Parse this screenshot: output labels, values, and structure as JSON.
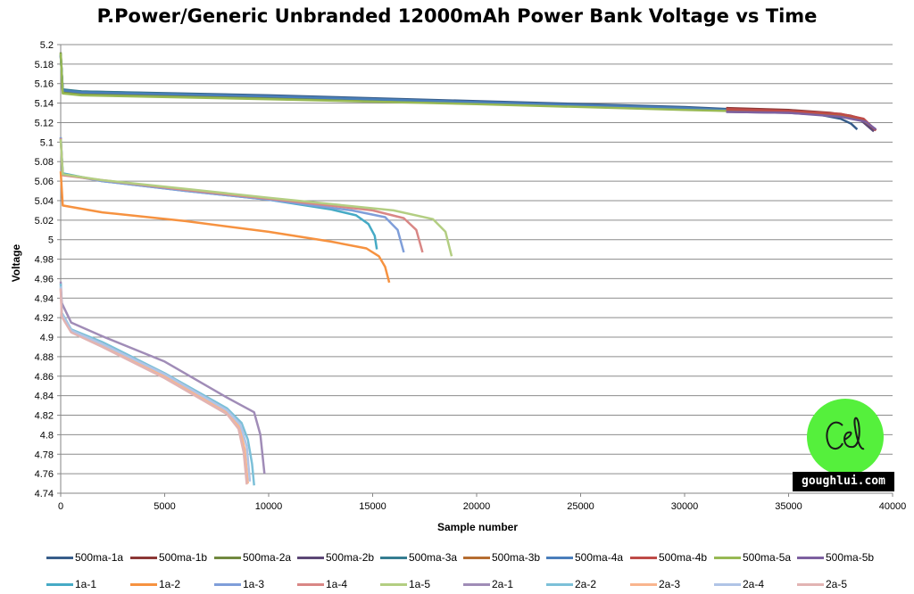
{
  "chart_data": {
    "type": "line",
    "title": "P.Power/Generic Unbranded 12000mAh Power Bank Voltage vs Time",
    "xlabel": "Sample number",
    "ylabel": "Voltage",
    "xlim": [
      0,
      40000
    ],
    "ylim": [
      4.74,
      5.2
    ],
    "x_ticks": [
      "0",
      "5000",
      "10000",
      "15000",
      "20000",
      "25000",
      "30000",
      "35000",
      "40000"
    ],
    "y_ticks": [
      "4.74",
      "4.76",
      "4.78",
      "4.8",
      "4.82",
      "4.84",
      "4.86",
      "4.88",
      "4.9",
      "4.92",
      "4.94",
      "4.96",
      "4.98",
      "5",
      "5.02",
      "5.04",
      "5.06",
      "5.08",
      "5.1",
      "5.12",
      "5.14",
      "5.16",
      "5.18",
      "5.2"
    ],
    "grid": true,
    "legend_position": "bottom",
    "series": [
      {
        "name": "500ma-1a",
        "color": "#385d8a",
        "x": [
          0,
          100,
          1000,
          10000,
          20000,
          30000,
          35000,
          36500,
          37500,
          38000,
          38300
        ],
        "y": [
          5.188,
          5.153,
          5.152,
          5.148,
          5.142,
          5.136,
          5.131,
          5.128,
          5.124,
          5.119,
          5.113
        ]
      },
      {
        "name": "500ma-1b",
        "color": "#8c3836",
        "x": [
          32000,
          35000,
          37000,
          38000,
          38500,
          38800,
          39200
        ],
        "y": [
          5.135,
          5.133,
          5.13,
          5.127,
          5.124,
          5.119,
          5.112
        ]
      },
      {
        "name": "500ma-2a",
        "color": "#71893f",
        "x": [
          0,
          100,
          1000,
          10000,
          20000,
          30000,
          32000
        ],
        "y": [
          5.192,
          5.151,
          5.149,
          5.145,
          5.14,
          5.134,
          5.133
        ]
      },
      {
        "name": "500ma-2b",
        "color": "#5c4776",
        "x": [
          32000,
          35000,
          37500,
          38500,
          39100
        ],
        "y": [
          5.131,
          5.13,
          5.127,
          5.122,
          5.111
        ]
      },
      {
        "name": "500ma-3a",
        "color": "#357d91",
        "x": [
          0,
          100,
          1000,
          10000,
          20000,
          30000,
          32000
        ],
        "y": [
          5.19,
          5.154,
          5.152,
          5.147,
          5.141,
          5.135,
          5.133
        ]
      },
      {
        "name": "500ma-3b",
        "color": "#b66d31",
        "x": [
          32000,
          35000,
          37500,
          38600,
          39000
        ],
        "y": [
          5.133,
          5.131,
          5.128,
          5.122,
          5.116
        ]
      },
      {
        "name": "500ma-4a",
        "color": "#4a7ebb",
        "x": [
          0,
          100,
          1000,
          10000,
          20000,
          30000,
          32000
        ],
        "y": [
          5.189,
          5.153,
          5.151,
          5.147,
          5.141,
          5.135,
          5.133
        ]
      },
      {
        "name": "500ma-4b",
        "color": "#be4b48",
        "x": [
          32000,
          35000,
          37500,
          38600,
          39200
        ],
        "y": [
          5.134,
          5.132,
          5.129,
          5.124,
          5.112
        ]
      },
      {
        "name": "500ma-5a",
        "color": "#98b954",
        "x": [
          0,
          100,
          1000,
          10000,
          20000,
          30000,
          32000
        ],
        "y": [
          5.191,
          5.15,
          5.148,
          5.144,
          5.139,
          5.133,
          5.132
        ]
      },
      {
        "name": "500ma-5b",
        "color": "#7d60a0",
        "x": [
          32000,
          35000,
          37500,
          38700,
          39200
        ],
        "y": [
          5.131,
          5.13,
          5.126,
          5.121,
          5.113
        ]
      },
      {
        "name": "1a-1",
        "color": "#46aac5",
        "x": [
          0,
          100,
          2000,
          6000,
          10000,
          13000,
          14200,
          14800,
          15100,
          15200
        ],
        "y": [
          5.105,
          5.068,
          5.06,
          5.05,
          5.041,
          5.031,
          5.025,
          5.016,
          5.004,
          4.99
        ]
      },
      {
        "name": "1a-2",
        "color": "#f69240",
        "x": [
          0,
          100,
          2000,
          6000,
          10000,
          13000,
          14700,
          15300,
          15600,
          15800
        ],
        "y": [
          5.07,
          5.035,
          5.028,
          5.019,
          5.008,
          4.998,
          4.991,
          4.983,
          4.972,
          4.956
        ]
      },
      {
        "name": "1a-3",
        "color": "#7f9ed9",
        "x": [
          0,
          100,
          2000,
          6000,
          10000,
          14000,
          15600,
          16200,
          16500
        ],
        "y": [
          5.105,
          5.067,
          5.06,
          5.05,
          5.041,
          5.03,
          5.023,
          5.01,
          4.987
        ]
      },
      {
        "name": "1a-4",
        "color": "#d98785",
        "x": [
          0,
          100,
          2000,
          6000,
          10000,
          15000,
          16500,
          17100,
          17400
        ],
        "y": [
          5.104,
          5.066,
          5.061,
          5.051,
          5.042,
          5.03,
          5.022,
          5.01,
          4.987
        ]
      },
      {
        "name": "1a-5",
        "color": "#b3ce82",
        "x": [
          0,
          100,
          2000,
          6000,
          10000,
          16000,
          17900,
          18500,
          18800
        ],
        "y": [
          5.103,
          5.067,
          5.061,
          5.052,
          5.043,
          5.03,
          5.021,
          5.008,
          4.983
        ]
      },
      {
        "name": "2a-1",
        "color": "#a08cb7",
        "x": [
          0,
          50,
          500,
          2000,
          5000,
          8000,
          9300,
          9600,
          9800
        ],
        "y": [
          4.957,
          4.935,
          4.915,
          4.901,
          4.875,
          4.838,
          4.823,
          4.8,
          4.76
        ]
      },
      {
        "name": "2a-2",
        "color": "#7cc0d8",
        "x": [
          0,
          50,
          500,
          2000,
          5000,
          8000,
          8700,
          9000,
          9200,
          9300
        ],
        "y": [
          4.955,
          4.925,
          4.908,
          4.895,
          4.863,
          4.827,
          4.812,
          4.795,
          4.77,
          4.748
        ]
      },
      {
        "name": "2a-3",
        "color": "#f9b58e",
        "x": [
          0,
          50,
          500,
          2000,
          5000,
          8000,
          8600,
          8850,
          9000
        ],
        "y": [
          4.95,
          4.922,
          4.906,
          4.892,
          4.86,
          4.823,
          4.808,
          4.785,
          4.75
        ]
      },
      {
        "name": "2a-4",
        "color": "#b0c4e6",
        "x": [
          0,
          50,
          500,
          2000,
          5000,
          8000,
          8650,
          8950,
          9100
        ],
        "y": [
          4.952,
          4.924,
          4.907,
          4.893,
          4.862,
          4.825,
          4.81,
          4.788,
          4.752
        ]
      },
      {
        "name": "2a-5",
        "color": "#e2b4b3",
        "x": [
          0,
          50,
          500,
          2000,
          5000,
          8000,
          8550,
          8800,
          8950
        ],
        "y": [
          4.95,
          4.921,
          4.905,
          4.89,
          4.858,
          4.821,
          4.806,
          4.782,
          4.749
        ]
      }
    ]
  },
  "watermark": {
    "logo_text": "Ce",
    "site": "goughlui.com",
    "logo_color": "#55f03c"
  }
}
